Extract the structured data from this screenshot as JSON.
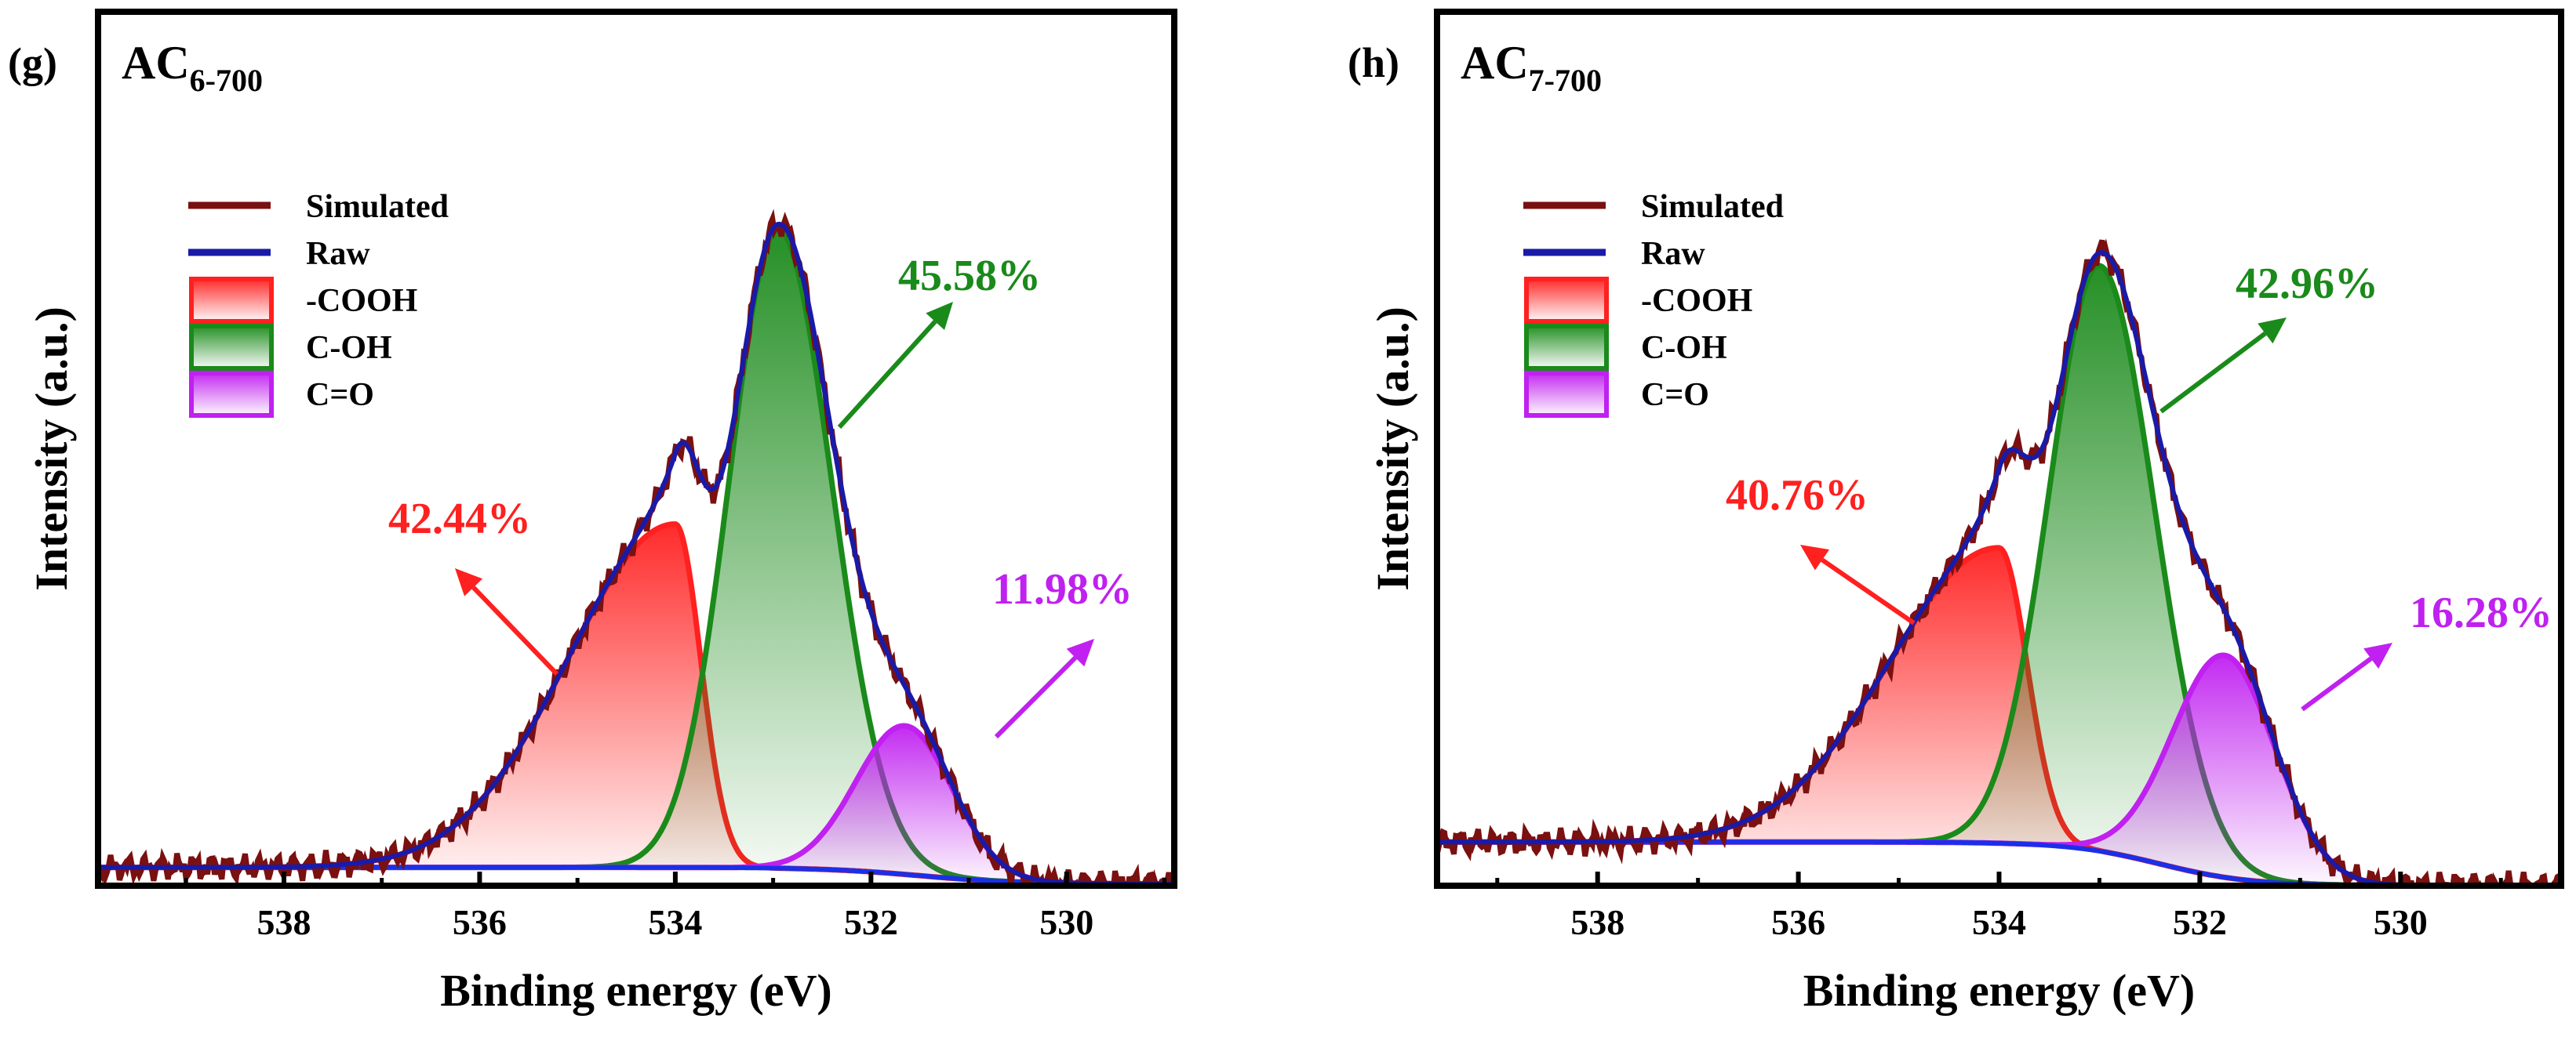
{
  "chart_data": [
    {
      "type": "area",
      "panel_label": "(g)",
      "sample_name": "AC",
      "sample_subscript": "6-700",
      "xlabel": "Binding energy (eV)",
      "ylabel": "Intensity (a.u.)",
      "x_reversed": true,
      "xlim": [
        539.9,
        528.9
      ],
      "ylim": [
        0,
        1.0
      ],
      "x_ticks": [
        538,
        536,
        534,
        532,
        530
      ],
      "x_tick_labels": [
        "538",
        "536",
        "534",
        "532",
        "530"
      ],
      "legend": [
        {
          "label": "Simulated",
          "kind": "line"
        },
        {
          "label": "Raw",
          "kind": "line"
        },
        {
          "label": "-COOH",
          "kind": "area"
        },
        {
          "label": "C-OH",
          "kind": "area"
        },
        {
          "label": "C=O",
          "kind": "area"
        }
      ],
      "background": {
        "left": 0.021,
        "right": 0.002,
        "center": 531.5,
        "width": 0.5
      },
      "components": [
        {
          "name": "-COOH",
          "center": 534.0,
          "amplitude": 0.393,
          "sigma_left": 1.1,
          "sigma_right": 0.26
        },
        {
          "name": "C-OH",
          "center": 532.95,
          "amplitude": 0.731,
          "sigma_left": 0.5,
          "sigma_right": 0.55
        },
        {
          "name": "C=O",
          "center": 531.65,
          "amplitude": 0.17,
          "sigma_left": 0.5,
          "sigma_right": 0.48
        }
      ],
      "annotations": [
        {
          "text": "42.44%",
          "component": "-COOH"
        },
        {
          "text": "45.58%",
          "component": "C-OH"
        },
        {
          "text": "11.98%",
          "component": "C=O"
        }
      ]
    },
    {
      "type": "area",
      "panel_label": "(h)",
      "sample_name": "AC",
      "sample_subscript": "7-700",
      "xlabel": "Binding energy (eV)",
      "ylabel": "Intensity (a.u.)",
      "x_reversed": true,
      "xlim": [
        539.6,
        528.4
      ],
      "ylim": [
        0,
        1.0
      ],
      "x_ticks": [
        538,
        536,
        534,
        532,
        530
      ],
      "x_tick_labels": [
        "538",
        "536",
        "534",
        "532",
        "530"
      ],
      "legend": [
        {
          "label": "Simulated",
          "kind": "line"
        },
        {
          "label": "Raw",
          "kind": "line"
        },
        {
          "label": "-COOH",
          "kind": "area"
        },
        {
          "label": "C-OH",
          "kind": "area"
        },
        {
          "label": "C=O",
          "kind": "area"
        }
      ],
      "background": {
        "left": 0.05,
        "right": 0.0,
        "center": 532.4,
        "width": 0.45
      },
      "components": [
        {
          "name": "-COOH",
          "center": 534.0,
          "amplitude": 0.338,
          "sigma_left": 1.1,
          "sigma_right": 0.28
        },
        {
          "name": "C-OH",
          "center": 533.0,
          "amplitude": 0.67,
          "sigma_left": 0.5,
          "sigma_right": 0.55
        },
        {
          "name": "C=O",
          "center": 531.75,
          "amplitude": 0.254,
          "sigma_left": 0.52,
          "sigma_right": 0.5
        }
      ],
      "annotations": [
        {
          "text": "40.76%",
          "component": "-COOH"
        },
        {
          "text": "42.96%",
          "component": "C-OH"
        },
        {
          "text": "16.28%",
          "component": "C=O"
        }
      ]
    }
  ],
  "colors": {
    "simulated": "#7a1010",
    "raw": "#1a1aa8",
    "baseline": "#1a30e8",
    "cooh": "#ff2020",
    "coh": "#1a8a1a",
    "co": "#c020f0",
    "axis": "#000000"
  }
}
